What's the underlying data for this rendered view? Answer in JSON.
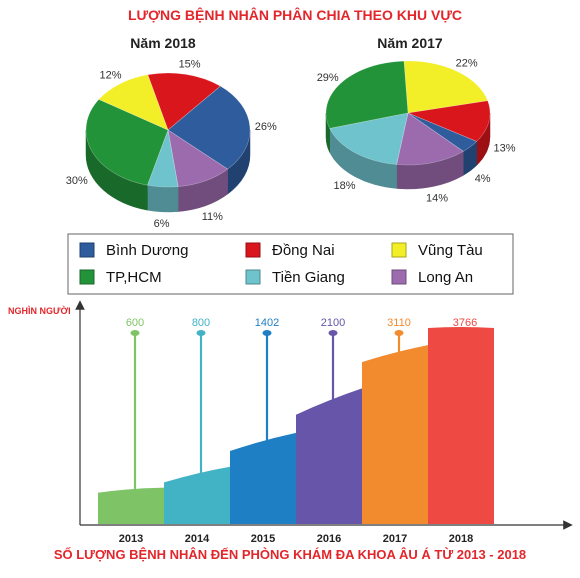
{
  "header": {
    "title": "LƯỢNG BỆNH NHÂN PHÂN CHIA THEO KHU VỰC",
    "footer": "SỐ LƯỢNG BỆNH NHÂN ĐẾN PHÒNG KHÁM ĐA KHOA ÂU Á TỪ 2013 - 2018"
  },
  "legend": {
    "items": [
      {
        "label": "Bình Dương",
        "color": "#2e5c9c"
      },
      {
        "label": "Đồng Nai",
        "color": "#d9161c"
      },
      {
        "label": "Vũng Tàu",
        "color": "#f2ee28"
      },
      {
        "label": "TP,HCM",
        "color": "#23933a"
      },
      {
        "label": "Tiền Giang",
        "color": "#6ec3cc"
      },
      {
        "label": "Long An",
        "color": "#9b6bad"
      }
    ]
  },
  "chart_data": [
    {
      "type": "pie",
      "title": "Năm 2018",
      "slices": [
        {
          "name": "Đồng Nai",
          "value": 15,
          "label": "15%",
          "color": "#d9161c"
        },
        {
          "name": "Bình Dương",
          "value": 26,
          "label": "26%",
          "color": "#2e5c9c"
        },
        {
          "name": "Long An",
          "value": 11,
          "label": "11%",
          "color": "#9b6bad"
        },
        {
          "name": "Tiền Giang",
          "value": 6,
          "label": "6%",
          "color": "#6ec3cc"
        },
        {
          "name": "TP,HCM",
          "value": 30,
          "label": "30%",
          "color": "#23933a"
        },
        {
          "name": "Vũng Tàu",
          "value": 12,
          "label": "12%",
          "color": "#f2ee28"
        }
      ]
    },
    {
      "type": "pie",
      "title": "Năm 2017",
      "slices": [
        {
          "name": "Vũng Tàu",
          "value": 22,
          "label": "22%",
          "color": "#f2ee28"
        },
        {
          "name": "Đồng Nai",
          "value": 13,
          "label": "13%",
          "color": "#d9161c"
        },
        {
          "name": "Bình Dương",
          "value": 4,
          "label": "4%",
          "color": "#2e5c9c"
        },
        {
          "name": "Long An",
          "value": 14,
          "label": "14%",
          "color": "#9b6bad"
        },
        {
          "name": "Tiền Giang",
          "value": 18,
          "label": "18%",
          "color": "#6ec3cc"
        },
        {
          "name": "TP,HCM",
          "value": 29,
          "label": "29%",
          "color": "#23933a"
        }
      ]
    },
    {
      "type": "area",
      "ylabel": "NGHÌN NGƯỜI",
      "categories": [
        "2013",
        "2014",
        "2015",
        "2016",
        "2017",
        "2018"
      ],
      "values": [
        600,
        800,
        1402,
        2100,
        3110,
        3766
      ],
      "value_labels": [
        "600",
        "800",
        "1402",
        "2100",
        "3110",
        "3766"
      ],
      "colors": [
        "#7ec466",
        "#42b3c4",
        "#1f7fc4",
        "#6655a8",
        "#f28a2e",
        "#ee4a43"
      ]
    }
  ]
}
